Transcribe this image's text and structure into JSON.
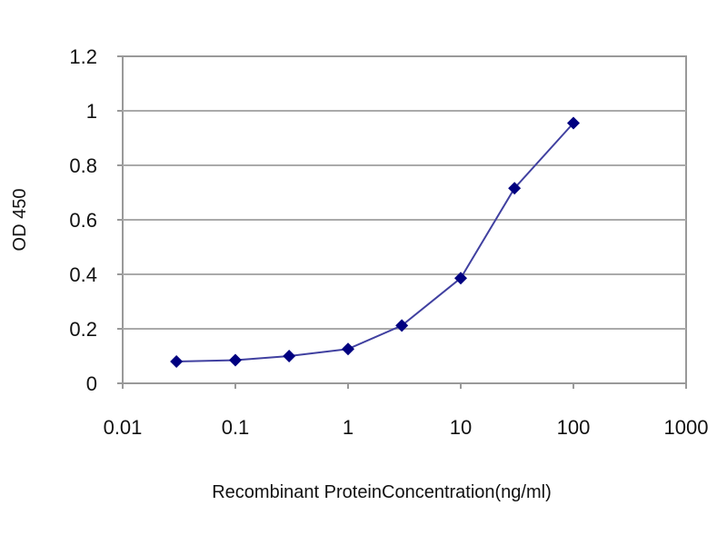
{
  "chart_data": {
    "type": "line",
    "title": "",
    "xlabel": "Recombinant ProteinConcentration(ng/ml)",
    "ylabel": "OD 450",
    "x_scale": "log",
    "xlim": [
      0.01,
      1000
    ],
    "ylim": [
      0,
      1.2
    ],
    "x_ticks": [
      "0.01",
      "0.1",
      "1",
      "10",
      "100",
      "1000"
    ],
    "y_ticks": [
      "0",
      "0.2",
      "0.4",
      "0.6",
      "0.8",
      "1",
      "1.2"
    ],
    "grid": "horizontal",
    "legend": "none",
    "series": [
      {
        "color": "#000080",
        "marker": "diamond",
        "x": [
          0.03,
          0.1,
          0.3,
          1,
          3,
          10,
          30,
          100
        ],
        "y": [
          0.08,
          0.085,
          0.1,
          0.126,
          0.212,
          0.386,
          0.716,
          0.955
        ]
      }
    ]
  }
}
